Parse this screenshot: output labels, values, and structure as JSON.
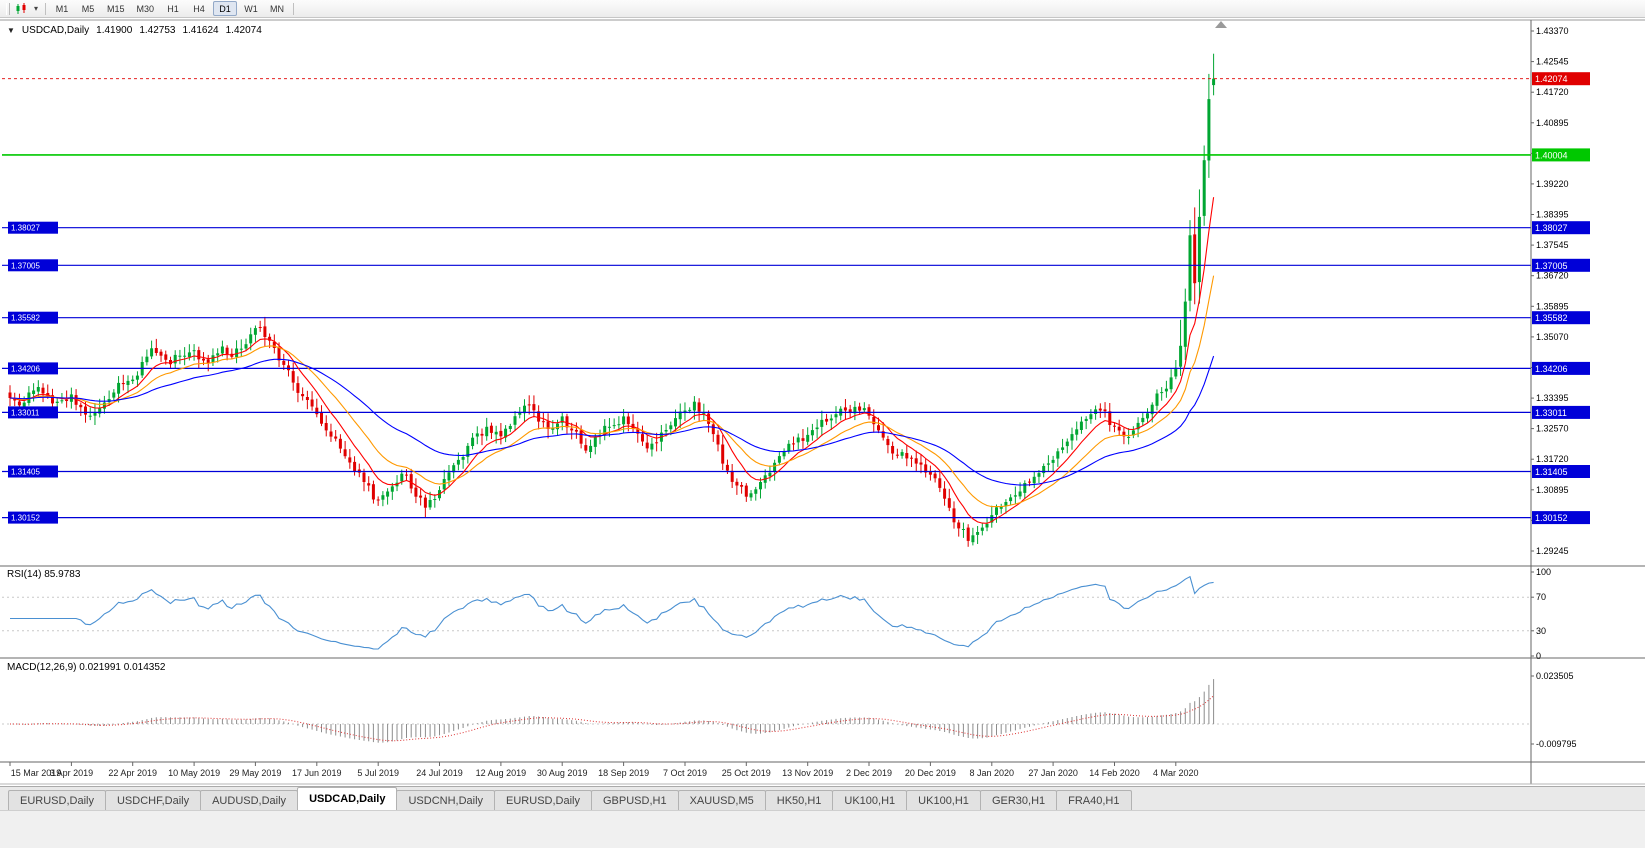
{
  "toolbar": {
    "caret": "▾",
    "timeframes": [
      {
        "label": "M1"
      },
      {
        "label": "M5"
      },
      {
        "label": "M15"
      },
      {
        "label": "M30"
      },
      {
        "label": "H1"
      },
      {
        "label": "H4"
      },
      {
        "label": "D1",
        "active": true
      },
      {
        "label": "W1"
      },
      {
        "label": "MN"
      }
    ]
  },
  "chart": {
    "header": {
      "arrow": "▼",
      "symbol": "USDCAD,Daily",
      "open": "1.41900",
      "high": "1.42753",
      "low": "1.41624",
      "close": "1.42074"
    },
    "rsi_label": {
      "name": "RSI(14)",
      "value": "85.9783"
    },
    "macd_label": {
      "name": "MACD(12,26,9)",
      "value": "0.021991 0.014352"
    }
  },
  "chart_data": {
    "type": "candlestick",
    "title": "USDCAD Daily with RSI(14) and MACD(12,26,9)",
    "symbol": "USDCAD",
    "timeframe": "Daily",
    "num_candles": 256,
    "candles_per_label": 13,
    "x_axis_labels": [
      "15 Mar 2019",
      "3 Apr 2019",
      "22 Apr 2019",
      "10 May 2019",
      "29 May 2019",
      "17 Jun 2019",
      "5 Jul 2019",
      "24 Jul 2019",
      "12 Aug 2019",
      "30 Aug 2019",
      "18 Sep 2019",
      "7 Oct 2019",
      "25 Oct 2019",
      "13 Nov 2019",
      "2 Dec 2019",
      "20 Dec 2019",
      "8 Jan 2020",
      "27 Jan 2020",
      "14 Feb 2020",
      "4 Mar 2020"
    ],
    "y_axis": {
      "top": 1.4337,
      "bottom": 1.29245,
      "ticks": [
        "1.43370",
        "1.42545",
        "1.41720",
        "1.40895",
        "1.40070",
        "1.39220",
        "1.38395",
        "1.37545",
        "1.36720",
        "1.35895",
        "1.35070",
        "1.34245",
        "1.33395",
        "1.32570",
        "1.31720",
        "1.30895",
        "1.30070",
        "1.29245"
      ]
    },
    "price_anchors": [
      [
        0,
        1.334
      ],
      [
        2,
        1.332
      ],
      [
        4,
        1.3355
      ],
      [
        6,
        1.337
      ],
      [
        8,
        1.3345
      ],
      [
        10,
        1.333
      ],
      [
        13,
        1.335
      ],
      [
        15,
        1.3315
      ],
      [
        17,
        1.3292
      ],
      [
        19,
        1.3312
      ],
      [
        22,
        1.3355
      ],
      [
        24,
        1.3378
      ],
      [
        26,
        1.339
      ],
      [
        28,
        1.3438
      ],
      [
        30,
        1.3475
      ],
      [
        32,
        1.3455
      ],
      [
        34,
        1.3432
      ],
      [
        36,
        1.3455
      ],
      [
        39,
        1.347
      ],
      [
        41,
        1.3442
      ],
      [
        43,
        1.3456
      ],
      [
        45,
        1.348
      ],
      [
        47,
        1.3452
      ],
      [
        49,
        1.3474
      ],
      [
        52,
        1.353
      ],
      [
        54,
        1.3506
      ],
      [
        56,
        1.3476
      ],
      [
        58,
        1.343
      ],
      [
        60,
        1.3382
      ],
      [
        62,
        1.3345
      ],
      [
        65,
        1.3296
      ],
      [
        67,
        1.3252
      ],
      [
        69,
        1.323
      ],
      [
        71,
        1.3182
      ],
      [
        73,
        1.3142
      ],
      [
        75,
        1.3112
      ],
      [
        78,
        1.3062
      ],
      [
        80,
        1.3086
      ],
      [
        82,
        1.311
      ],
      [
        84,
        1.313
      ],
      [
        86,
        1.3072
      ],
      [
        88,
        1.3042
      ],
      [
        91,
        1.309
      ],
      [
        93,
        1.3138
      ],
      [
        95,
        1.3172
      ],
      [
        97,
        1.321
      ],
      [
        99,
        1.3244
      ],
      [
        101,
        1.3262
      ],
      [
        104,
        1.3236
      ],
      [
        106,
        1.3264
      ],
      [
        108,
        1.33
      ],
      [
        110,
        1.332
      ],
      [
        112,
        1.3276
      ],
      [
        114,
        1.3256
      ],
      [
        117,
        1.329
      ],
      [
        119,
        1.3252
      ],
      [
        121,
        1.3216
      ],
      [
        123,
        1.321
      ],
      [
        125,
        1.324
      ],
      [
        127,
        1.3262
      ],
      [
        130,
        1.329
      ],
      [
        132,
        1.3256
      ],
      [
        134,
        1.3222
      ],
      [
        136,
        1.3216
      ],
      [
        138,
        1.3246
      ],
      [
        140,
        1.3266
      ],
      [
        143,
        1.3306
      ],
      [
        145,
        1.333
      ],
      [
        147,
        1.33
      ],
      [
        149,
        1.3242
      ],
      [
        151,
        1.3162
      ],
      [
        153,
        1.3112
      ],
      [
        156,
        1.3072
      ],
      [
        158,
        1.3092
      ],
      [
        160,
        1.313
      ],
      [
        162,
        1.3164
      ],
      [
        164,
        1.3196
      ],
      [
        166,
        1.3216
      ],
      [
        169,
        1.324
      ],
      [
        171,
        1.326
      ],
      [
        173,
        1.3276
      ],
      [
        175,
        1.3296
      ],
      [
        177,
        1.3306
      ],
      [
        179,
        1.3316
      ],
      [
        182,
        1.3292
      ],
      [
        184,
        1.3252
      ],
      [
        186,
        1.3212
      ],
      [
        188,
        1.3186
      ],
      [
        190,
        1.3176
      ],
      [
        192,
        1.3162
      ],
      [
        195,
        1.3132
      ],
      [
        197,
        1.3096
      ],
      [
        199,
        1.3042
      ],
      [
        201,
        1.2986
      ],
      [
        203,
        1.2952
      ],
      [
        205,
        1.2976
      ],
      [
        208,
        1.3022
      ],
      [
        210,
        1.3046
      ],
      [
        212,
        1.307
      ],
      [
        214,
        1.3086
      ],
      [
        216,
        1.3112
      ],
      [
        218,
        1.3136
      ],
      [
        221,
        1.3172
      ],
      [
        223,
        1.3206
      ],
      [
        225,
        1.3242
      ],
      [
        227,
        1.3276
      ],
      [
        229,
        1.3296
      ],
      [
        231,
        1.3306
      ],
      [
        234,
        1.3262
      ],
      [
        236,
        1.3236
      ],
      [
        238,
        1.3252
      ],
      [
        240,
        1.3286
      ],
      [
        242,
        1.3322
      ],
      [
        244,
        1.3356
      ],
      [
        246,
        1.3396
      ],
      [
        247,
        1.3422
      ],
      [
        248,
        1.3482
      ],
      [
        249,
        1.3602
      ],
      [
        250,
        1.3782
      ],
      [
        251,
        1.3652
      ],
      [
        252,
        1.3832
      ],
      [
        253,
        1.3986
      ],
      [
        254,
        1.4152
      ],
      [
        255,
        1.42074
      ]
    ],
    "last_candle": {
      "open": 1.419,
      "high": 1.42753,
      "low": 1.41624,
      "close": 1.42074
    },
    "overrides": [
      {
        "index": 88,
        "min_low": 1.3016
      },
      {
        "index": 203,
        "min_low": 1.2936
      },
      {
        "index": 250,
        "min_high": 1.3808
      },
      {
        "index": 253,
        "min_high": 1.4008
      }
    ],
    "moving_averages": [
      {
        "name": "fast",
        "period": 8,
        "color": "#ff0000"
      },
      {
        "name": "medium",
        "period": 17,
        "color": "#ff9900"
      },
      {
        "name": "slow",
        "period": 40,
        "color": "#0000ff"
      }
    ],
    "horizontal_lines": [
      {
        "price": 1.40004,
        "label": "1.40004",
        "color": "#00c800",
        "width": 1.6,
        "left_label": false
      },
      {
        "price": 1.38027,
        "label": "1.38027",
        "color": "#0000d8",
        "width": 1.2,
        "left_label": true
      },
      {
        "price": 1.37005,
        "label": "1.37005",
        "color": "#0000d8",
        "width": 1.2,
        "left_label": true
      },
      {
        "price": 1.35582,
        "label": "1.35582",
        "color": "#0000d8",
        "width": 1.2,
        "left_label": true
      },
      {
        "price": 1.34206,
        "label": "1.34206",
        "color": "#0000d8",
        "width": 1.2,
        "left_label": true
      },
      {
        "price": 1.33011,
        "label": "1.33011",
        "color": "#0000d8",
        "width": 1.2,
        "left_label": true
      },
      {
        "price": 1.31405,
        "label": "1.31405",
        "color": "#0000d8",
        "width": 1.2,
        "left_label": true
      },
      {
        "price": 1.30152,
        "label": "1.30152",
        "color": "#0000d8",
        "width": 1.2,
        "left_label": true
      }
    ],
    "current_price": {
      "value": 1.42074,
      "label": "1.42074",
      "color": "#e00000"
    },
    "rsi": {
      "period": 14,
      "current": 85.9783,
      "color": "#4a90d2",
      "levels": [
        70,
        30
      ],
      "axis_labels": [
        [
          100,
          "100"
        ],
        [
          70,
          "70"
        ],
        [
          30,
          "30"
        ],
        [
          0,
          "0"
        ]
      ]
    },
    "macd": {
      "fast": 12,
      "slow": 26,
      "signal": 9,
      "current_main": 0.021991,
      "current_signal": 0.014352,
      "hist_color": "#8c8c8c",
      "signal_color": "#dd3333",
      "axis_labels": [
        [
          0.023505,
          "0.023505"
        ],
        [
          -0.009795,
          "-0.009795"
        ]
      ]
    },
    "colors": {
      "up": "#00a632",
      "down": "#e00000"
    },
    "legend_position": "none",
    "grid": false
  },
  "tabs": [
    {
      "label": "EURUSD,Daily",
      "active": false
    },
    {
      "label": "USDCHF,Daily",
      "active": false
    },
    {
      "label": "AUDUSD,Daily",
      "active": false
    },
    {
      "label": "USDCAD,Daily",
      "active": true
    },
    {
      "label": "USDCNH,Daily",
      "active": false
    },
    {
      "label": "EURUSD,Daily",
      "active": false
    },
    {
      "label": "GBPUSD,H1",
      "active": false
    },
    {
      "label": "XAUUSD,M5",
      "active": false
    },
    {
      "label": "HK50,H1",
      "active": false
    },
    {
      "label": "UK100,H1",
      "active": false
    },
    {
      "label": "UK100,H1",
      "active": false
    },
    {
      "label": "GER30,H1",
      "active": false
    },
    {
      "label": "FRA40,H1",
      "active": false
    }
  ]
}
